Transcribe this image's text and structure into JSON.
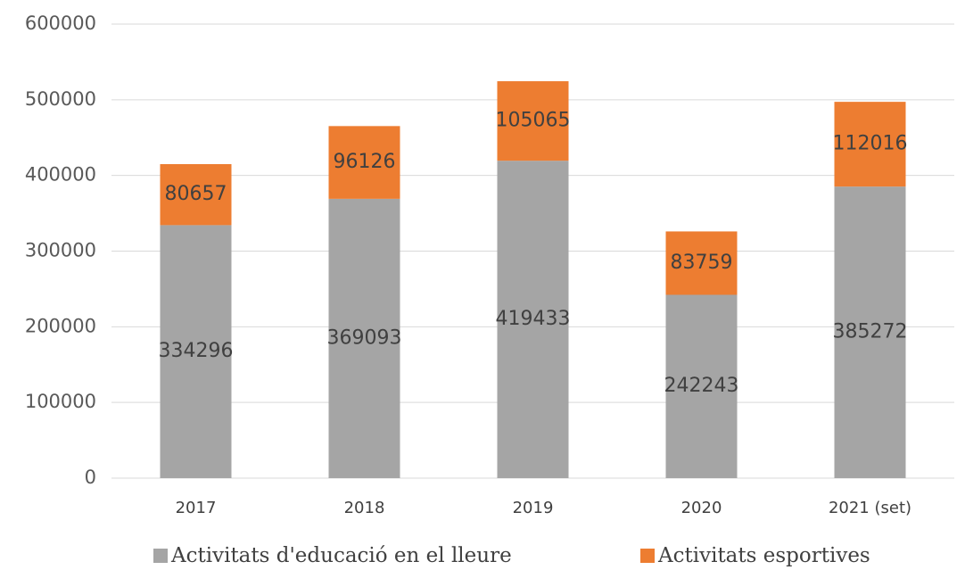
{
  "chart_data": {
    "type": "stacked_bar",
    "categories": [
      "2017",
      "2018",
      "2019",
      "2020",
      "2021 (set)"
    ],
    "series": [
      {
        "name": "Activitats d'educació en el lleure",
        "color": "#a5a5a5",
        "values": [
          334296,
          369093,
          419433,
          242243,
          385272
        ]
      },
      {
        "name": "Activitats esportives",
        "color": "#ed7d31",
        "values": [
          80657,
          96126,
          105065,
          83759,
          112016
        ]
      }
    ],
    "ylim": [
      0,
      600000
    ],
    "yticks": [
      0,
      100000,
      200000,
      300000,
      400000,
      500000,
      600000
    ],
    "grid": true,
    "legend": "bottom"
  }
}
